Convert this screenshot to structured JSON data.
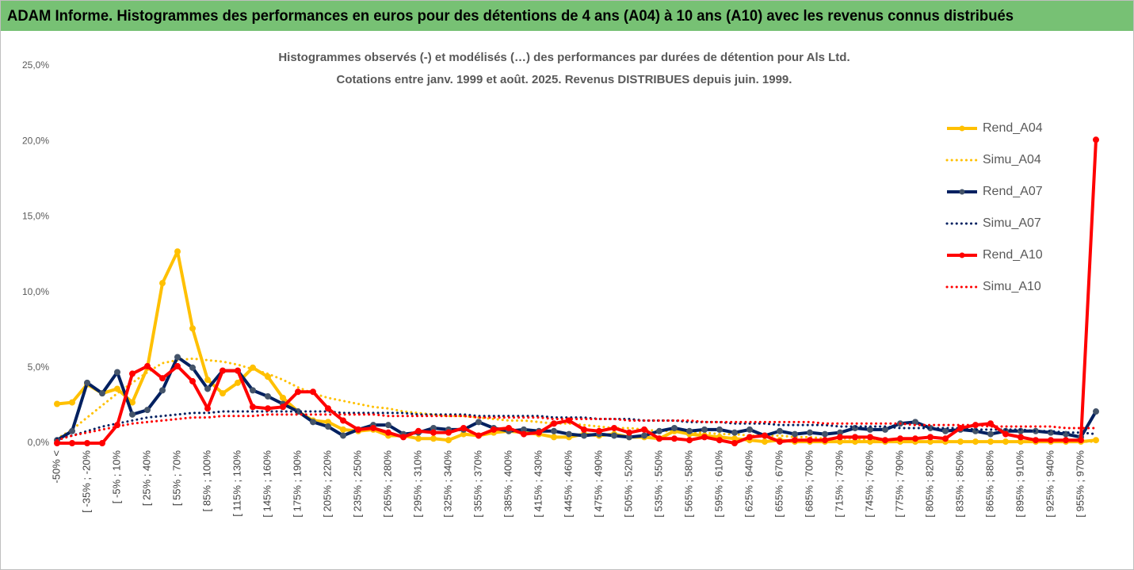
{
  "header": {
    "title": "ADAM Informe. Histogrammes des performances en euros pour des détentions de 4 ans (A04) à 10 ans (A10) avec les revenus connus distribués"
  },
  "chart_data": {
    "type": "line",
    "title": "Histogrammes observés (-) et modélisés (…) des performances par durées de détention pour Als Ltd.",
    "subtitle": "Cotations entre janv. 1999 et août. 2025. Revenus DISTRIBUES depuis juin. 1999.",
    "categories": [
      "-50% <",
      null,
      "[ -35% ; -20%",
      null,
      "[ -5% ; 10%",
      null,
      "[ 25% ; 40%",
      null,
      "[ 55% ; 70%",
      null,
      "[ 85% ; 100%",
      null,
      "[ 115% ; 130%",
      null,
      "[ 145% ; 160%",
      null,
      "[ 175% ; 190%",
      null,
      "[ 205% ; 220%",
      null,
      "[ 235% ; 250%",
      null,
      "[ 265% ; 280%",
      null,
      "[ 295% ; 310%",
      null,
      "[ 325% ; 340%",
      null,
      "[ 355% ; 370%",
      null,
      "[ 385% ; 400%",
      null,
      "[ 415% ; 430%",
      null,
      "[ 445% ; 460%",
      null,
      "[ 475% ; 490%",
      null,
      "[ 505% ; 520%",
      null,
      "[ 535% ; 550%",
      null,
      "[ 565% ; 580%",
      null,
      "[ 595% ; 610%",
      null,
      "[ 625% ; 640%",
      null,
      "[ 655% ; 670%",
      null,
      "[ 685% ; 700%",
      null,
      "[ 715% ; 730%",
      null,
      "[ 745% ; 760%",
      null,
      "[ 775% ; 790%",
      null,
      "[ 805% ; 820%",
      null,
      "[ 835% ; 850%",
      null,
      "[ 865% ; 880%",
      null,
      "[ 895% ; 910%",
      null,
      "[ 925% ; 940%",
      null,
      "[ 955% ; 970%",
      null
    ],
    "series": [
      {
        "name": "Rend_A04",
        "color": "#ffc000",
        "style": "solid",
        "marker": true,
        "values": [
          2.6,
          2.7,
          3.9,
          3.3,
          3.6,
          2.7,
          5.0,
          10.6,
          12.7,
          7.6,
          4.2,
          3.3,
          4.0,
          5.0,
          4.4,
          3.0,
          2.1,
          1.5,
          1.4,
          0.9,
          0.8,
          0.9,
          0.5,
          0.5,
          0.3,
          0.3,
          0.2,
          0.6,
          0.5,
          0.7,
          0.8,
          0.7,
          0.6,
          0.4,
          0.4,
          0.6,
          0.5,
          0.6,
          0.4,
          0.4,
          0.3,
          0.8,
          0.6,
          0.5,
          0.4,
          0.3,
          0.2,
          0.1,
          0.2,
          0.1,
          0.1,
          0.1,
          0.1,
          0.1,
          0.1,
          0.1,
          0.1,
          0.1,
          0.1,
          0.1,
          0.1,
          0.1,
          0.1,
          0.1,
          0.1,
          0.1,
          0.1,
          0.1,
          0.1,
          0.2
        ]
      },
      {
        "name": "Simu_A04",
        "color": "#ffc000",
        "style": "dotted",
        "marker": false,
        "values": [
          0.3,
          0.9,
          1.7,
          2.5,
          3.3,
          4.0,
          4.7,
          5.3,
          5.5,
          5.6,
          5.5,
          5.4,
          5.2,
          4.9,
          4.6,
          4.2,
          3.7,
          3.3,
          3.0,
          2.8,
          2.6,
          2.4,
          2.3,
          2.1,
          2.0,
          1.9,
          1.8,
          1.8,
          1.7,
          1.6,
          1.5,
          1.5,
          1.4,
          1.3,
          1.3,
          1.2,
          1.1,
          1.0,
          1.0,
          0.9,
          0.8,
          0.8,
          0.7,
          0.7,
          0.6,
          0.6,
          0.5,
          0.5,
          0.5,
          0.4,
          0.4,
          0.3,
          0.3,
          0.3,
          0.2,
          0.2,
          0.1,
          0.1,
          0.1,
          0.1,
          0.1,
          0.1,
          0.1,
          0.1,
          0.1,
          0.1,
          0.1,
          0.1,
          0.1,
          0.1
        ]
      },
      {
        "name": "Rend_A07",
        "color": "#002060",
        "marker_color": "#44546a",
        "style": "solid",
        "marker": true,
        "values": [
          0.2,
          0.8,
          4.0,
          3.3,
          4.7,
          1.9,
          2.2,
          3.5,
          5.7,
          5.0,
          3.6,
          4.8,
          4.8,
          3.5,
          3.1,
          2.6,
          2.1,
          1.4,
          1.1,
          0.5,
          0.9,
          1.2,
          1.2,
          0.6,
          0.7,
          1.0,
          0.9,
          0.9,
          1.4,
          1.0,
          0.8,
          0.9,
          0.8,
          0.8,
          0.6,
          0.5,
          0.6,
          0.5,
          0.4,
          0.5,
          0.8,
          1.0,
          0.8,
          0.9,
          0.9,
          0.7,
          0.9,
          0.5,
          0.8,
          0.6,
          0.7,
          0.6,
          0.7,
          1.0,
          0.9,
          0.9,
          1.3,
          1.4,
          1.0,
          0.8,
          0.9,
          0.8,
          0.6,
          0.8,
          0.8,
          0.8,
          0.7,
          0.6,
          0.4,
          2.1
        ]
      },
      {
        "name": "Simu_A07",
        "color": "#002060",
        "style": "dotted",
        "marker": false,
        "values": [
          0.3,
          0.5,
          0.8,
          1.1,
          1.3,
          1.5,
          1.7,
          1.8,
          1.9,
          2.0,
          2.0,
          2.1,
          2.1,
          2.1,
          2.1,
          2.1,
          2.1,
          2.1,
          2.1,
          2.0,
          2.0,
          2.0,
          2.0,
          2.0,
          1.9,
          1.9,
          1.9,
          1.9,
          1.8,
          1.8,
          1.8,
          1.8,
          1.8,
          1.7,
          1.7,
          1.7,
          1.6,
          1.6,
          1.6,
          1.5,
          1.5,
          1.5,
          1.4,
          1.4,
          1.4,
          1.3,
          1.3,
          1.3,
          1.2,
          1.2,
          1.2,
          1.2,
          1.1,
          1.1,
          1.1,
          1.1,
          1.0,
          1.0,
          1.0,
          1.0,
          1.0,
          0.9,
          0.9,
          0.9,
          0.9,
          0.8,
          0.8,
          0.7,
          0.7,
          0.6
        ]
      },
      {
        "name": "Rend_A10",
        "color": "#ff0000",
        "style": "solid",
        "marker": true,
        "values": [
          0.0,
          0.0,
          0.0,
          0.0,
          1.2,
          4.6,
          5.1,
          4.3,
          5.1,
          4.1,
          2.3,
          4.8,
          4.8,
          2.4,
          2.3,
          2.4,
          3.4,
          3.4,
          2.3,
          1.5,
          0.9,
          1.0,
          0.7,
          0.4,
          0.8,
          0.7,
          0.7,
          1.0,
          0.5,
          0.9,
          1.0,
          0.6,
          0.7,
          1.3,
          1.5,
          0.9,
          0.8,
          1.0,
          0.7,
          0.9,
          0.3,
          0.3,
          0.2,
          0.4,
          0.2,
          0.0,
          0.4,
          0.5,
          0.1,
          0.2,
          0.2,
          0.2,
          0.4,
          0.4,
          0.4,
          0.2,
          0.3,
          0.3,
          0.4,
          0.3,
          1.0,
          1.2,
          1.3,
          0.6,
          0.4,
          0.2,
          0.2,
          0.2,
          0.2,
          20.1
        ]
      },
      {
        "name": "Simu_A10",
        "color": "#ff0000",
        "style": "dotted",
        "marker": false,
        "values": [
          0.2,
          0.5,
          0.7,
          0.9,
          1.1,
          1.3,
          1.4,
          1.5,
          1.6,
          1.7,
          1.7,
          1.8,
          1.8,
          1.8,
          1.9,
          1.9,
          1.9,
          1.9,
          1.9,
          1.9,
          1.9,
          1.9,
          1.8,
          1.8,
          1.8,
          1.8,
          1.8,
          1.8,
          1.7,
          1.7,
          1.7,
          1.7,
          1.7,
          1.6,
          1.6,
          1.6,
          1.6,
          1.6,
          1.5,
          1.5,
          1.5,
          1.5,
          1.5,
          1.4,
          1.4,
          1.4,
          1.4,
          1.4,
          1.4,
          1.4,
          1.4,
          1.3,
          1.3,
          1.3,
          1.3,
          1.3,
          1.3,
          1.2,
          1.2,
          1.2,
          1.2,
          1.2,
          1.1,
          1.1,
          1.1,
          1.1,
          1.1,
          1.0,
          1.0,
          1.0
        ]
      }
    ],
    "ylim": [
      0,
      25
    ],
    "yticks": [
      {
        "value": 0,
        "label": "0,0%"
      },
      {
        "value": 5,
        "label": "5,0%"
      },
      {
        "value": 10,
        "label": "10,0%"
      },
      {
        "value": 15,
        "label": "15,0%"
      },
      {
        "value": 20,
        "label": "20,0%"
      },
      {
        "value": 25,
        "label": "25,0%"
      }
    ],
    "legend": "right"
  }
}
